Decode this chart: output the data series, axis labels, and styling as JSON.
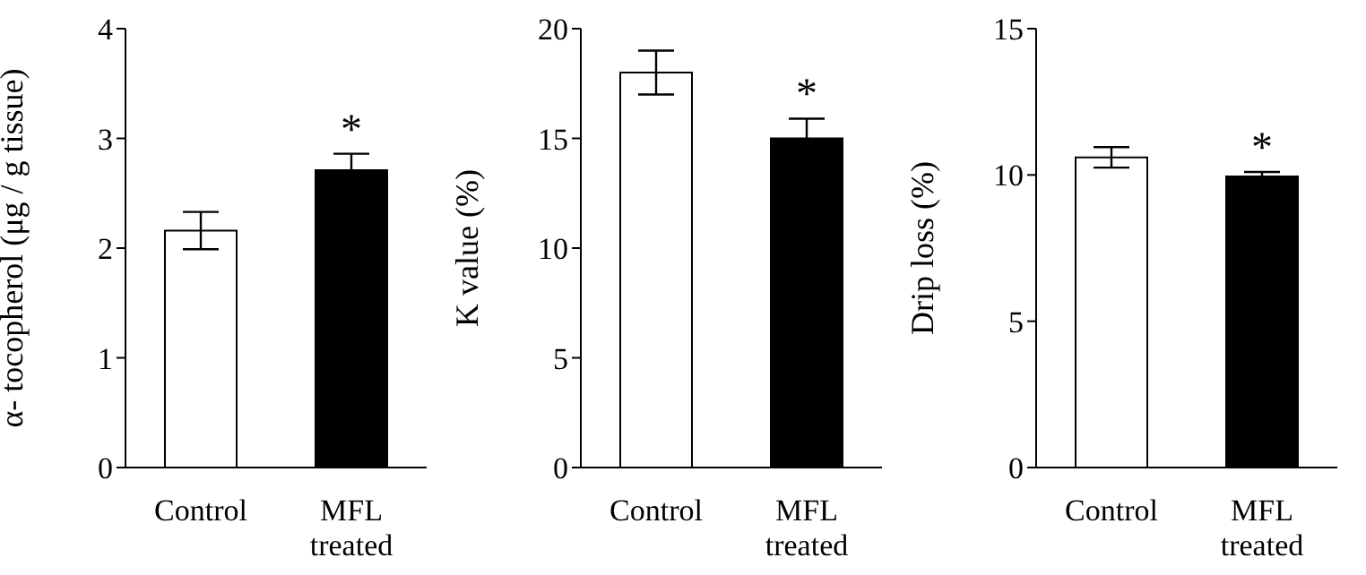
{
  "chart_data": [
    {
      "type": "bar",
      "ylabel": "α- tocopherol (μg / g tissue)",
      "categories": [
        "Control",
        "MFL treated"
      ],
      "values": [
        2.16,
        2.71
      ],
      "colors": [
        "#ffffff",
        "#000000"
      ],
      "errors": [
        0.17,
        0.15
      ],
      "ylim": [
        0,
        4
      ],
      "yticks": [
        0,
        1,
        2,
        3,
        4
      ],
      "annotations": [
        {
          "text": "*",
          "x": "MFL treated",
          "y": 2.86
        }
      ]
    },
    {
      "type": "bar",
      "ylabel": "K value (%)",
      "categories": [
        "Control",
        "MFL treated"
      ],
      "values": [
        18.0,
        15.0
      ],
      "colors": [
        "#ffffff",
        "#000000"
      ],
      "errors": [
        1.0,
        0.9
      ],
      "ylim": [
        0,
        20
      ],
      "yticks": [
        0,
        5,
        10,
        15,
        20
      ],
      "annotations": [
        {
          "text": "*",
          "x": "MFL treated",
          "y": 15.9
        }
      ]
    },
    {
      "type": "bar",
      "ylabel": "Drip loss (%)",
      "categories": [
        "Control",
        "MFL treated"
      ],
      "values": [
        10.6,
        9.95
      ],
      "colors": [
        "#ffffff",
        "#000000"
      ],
      "errors": [
        0.35,
        0.15
      ],
      "ylim": [
        0,
        15
      ],
      "yticks": [
        0,
        5,
        10,
        15
      ],
      "annotations": [
        {
          "text": "*",
          "x": "MFL treated",
          "y": 10.1
        }
      ]
    }
  ]
}
